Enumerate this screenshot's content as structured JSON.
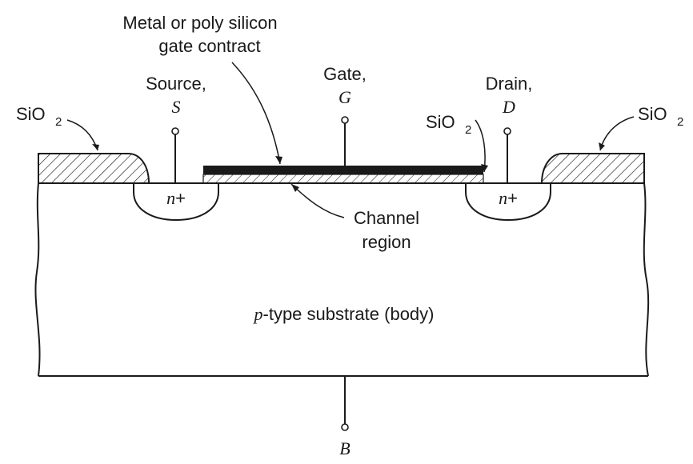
{
  "labels": {
    "gate_contact_line1": "Metal or poly silicon",
    "gate_contact_line2": "gate contract",
    "source_word": "Source,",
    "source_symbol": "S",
    "gate_word": "Gate,",
    "gate_symbol": "G",
    "drain_word": "Drain,",
    "drain_symbol": "D",
    "oxide_left": "SiO",
    "oxide_left_sub": "2",
    "oxide_mid": "SiO",
    "oxide_mid_sub": "2",
    "oxide_right": "SiO",
    "oxide_right_sub": "2",
    "nplus_left_n": "n",
    "nplus_left_plus": "+",
    "nplus_right_n": "n",
    "nplus_right_plus": "+",
    "channel_line1": "Channel",
    "channel_line2": "region",
    "substrate_p": "p",
    "substrate_rest": "-type substrate (body)",
    "body_symbol": "B"
  },
  "colors": {
    "ink": "#1a1a1a",
    "background": "#ffffff"
  }
}
